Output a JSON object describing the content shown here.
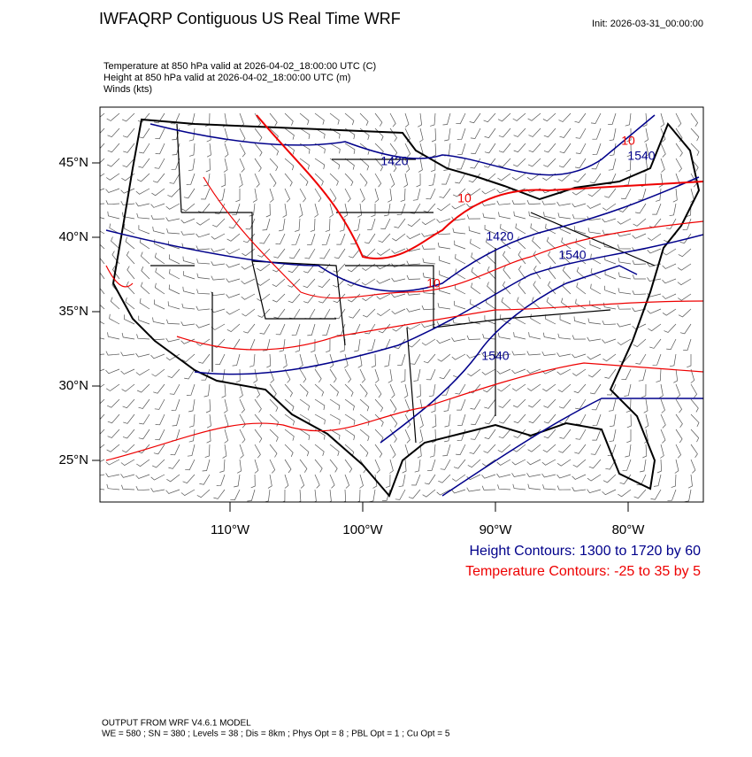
{
  "header": {
    "title": "IWFAQRP Contiguous US Real Time WRF",
    "init": "Init: 2026-03-31_00:00:00"
  },
  "fields": [
    "Temperature at 850 hPa valid at 2026-04-02_18:00:00 UTC   (C)",
    "Height at 850 hPa valid at 2026-04-02_18:00:00 UTC   (m)",
    "Winds   (kts)"
  ],
  "axes": {
    "lat_labels": [
      "45°N",
      "40°N",
      "35°N",
      "30°N",
      "25°N"
    ],
    "lon_labels": [
      "110°W",
      "100°W",
      "90°W",
      "80°W"
    ]
  },
  "contour_labels": [
    "1420",
    "1420",
    "1540",
    "1540",
    "1540",
    "10",
    "10",
    "10"
  ],
  "legend": {
    "height": "Height Contours: 1300 to 1720 by 60",
    "temperature": "Temperature Contours: -25 to 35 by 5"
  },
  "footer": [
    "OUTPUT FROM WRF V4.6.1 MODEL",
    "WE = 580 ; SN = 380 ; Levels = 38 ; Dis = 8km ; Phys Opt = 8 ; PBL Opt = 1 ; Cu Opt = 5"
  ]
}
